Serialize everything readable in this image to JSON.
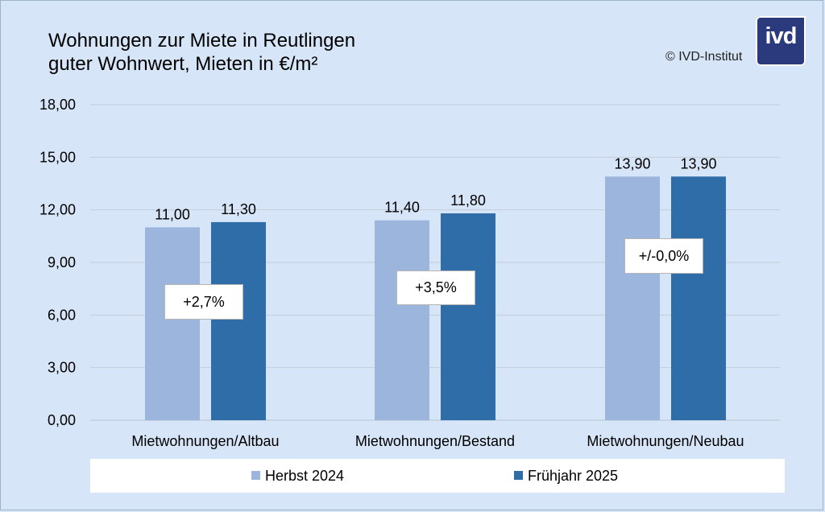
{
  "header": {
    "title_line1": "Wohnungen zur Miete in Reutlingen",
    "title_line2": "guter Wohnwert, Mieten in €/m²",
    "copyright": "© IVD-Institut",
    "logo_text": "ivd"
  },
  "colors": {
    "background": "#d6e5f7",
    "series1": "#9bb5dd",
    "series2": "#2e6da7",
    "logo": "#2a3a7c"
  },
  "chart_data": {
    "type": "bar",
    "categories": [
      "Mietwohnungen/Altbau",
      "Mietwohnungen/Bestand",
      "Mietwohnungen/Neubau"
    ],
    "series": [
      {
        "name": "Herbst 2024",
        "values": [
          11.0,
          11.4,
          13.9
        ],
        "labels": [
          "11,00",
          "11,40",
          "13,90"
        ]
      },
      {
        "name": "Frühjahr 2025",
        "values": [
          11.3,
          11.8,
          13.9
        ],
        "labels": [
          "11,30",
          "11,80",
          "13,90"
        ]
      }
    ],
    "change_labels": [
      "+2,7%",
      "+3,5%",
      "+/-0,0%"
    ],
    "ylim": [
      0,
      18
    ],
    "yticks": [
      0,
      3,
      6,
      9,
      12,
      15,
      18
    ],
    "ytick_labels": [
      "0,00",
      "3,00",
      "6,00",
      "9,00",
      "12,00",
      "15,00",
      "18,00"
    ],
    "grid": true,
    "legend_position": "bottom"
  }
}
